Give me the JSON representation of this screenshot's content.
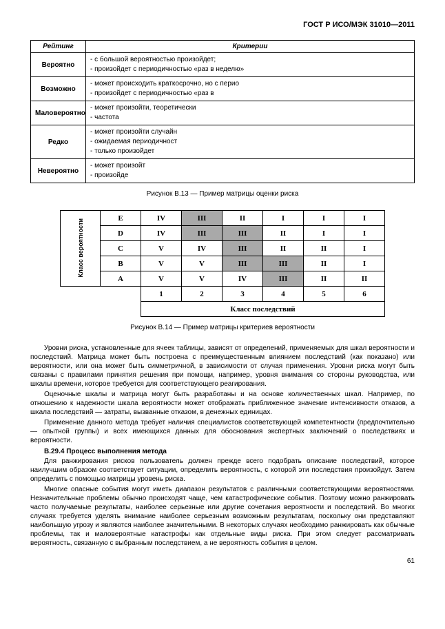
{
  "header": {
    "doc_id": "ГОСТ Р ИСО/МЭК 31010—2011"
  },
  "table1": {
    "columns": [
      "Рейтинг",
      "Критерии"
    ],
    "rows": [
      {
        "rating": "Вероятно",
        "criteria": "- с большой вероятностью произойдет;\n- произойдет с периодичностью «раз в неделю»"
      },
      {
        "rating": "Возможно",
        "criteria": "- может происходить краткосрочно, но с перио\n- произойдет с периодичностью «раз в"
      },
      {
        "rating": "Маловероятно",
        "criteria": "- может произойти, теоретически\n- частота"
      },
      {
        "rating": "Редко",
        "criteria": "- может произойти случайн\n- ожидаемая периодичност\n- только произойдет"
      },
      {
        "rating": "Невероятно",
        "criteria": "- может произойт\n- произойде"
      }
    ]
  },
  "captions": {
    "fig13": "Рисунок В.13 — Пример матрицы оценки риска",
    "fig14": "Рисунок В.14 — Пример матрицы критериев вероятности"
  },
  "matrix": {
    "vlabel": "Класс вероятности",
    "row_headers": [
      "E",
      "D",
      "C",
      "B",
      "A"
    ],
    "col_headers": [
      "1",
      "2",
      "3",
      "4",
      "5",
      "6"
    ],
    "footer_label": "Класс последствий",
    "cells": [
      [
        {
          "v": "IV"
        },
        {
          "v": "III",
          "s": 1
        },
        {
          "v": "II"
        },
        {
          "v": "I"
        },
        {
          "v": "I"
        },
        {
          "v": "I"
        }
      ],
      [
        {
          "v": "IV"
        },
        {
          "v": "III",
          "s": 1
        },
        {
          "v": "III",
          "s": 1
        },
        {
          "v": "II"
        },
        {
          "v": "I"
        },
        {
          "v": "I"
        }
      ],
      [
        {
          "v": "V"
        },
        {
          "v": "IV"
        },
        {
          "v": "III",
          "s": 1
        },
        {
          "v": "II"
        },
        {
          "v": "II"
        },
        {
          "v": "I"
        }
      ],
      [
        {
          "v": "V"
        },
        {
          "v": "V"
        },
        {
          "v": "III",
          "s": 1
        },
        {
          "v": "III",
          "s": 1
        },
        {
          "v": "II"
        },
        {
          "v": "I"
        }
      ],
      [
        {
          "v": "V"
        },
        {
          "v": "V"
        },
        {
          "v": "IV"
        },
        {
          "v": "III",
          "s": 1
        },
        {
          "v": "II"
        },
        {
          "v": "II"
        }
      ]
    ],
    "shade_color": "#a9a9a9"
  },
  "paragraphs": {
    "p1": "Уровни риска, установленные для ячеек таблицы, зависят от определений, применяемых для шкал вероятности и последствий. Матрица может быть построена с преимущественным влиянием последствий (как показано) или вероятности, или она может быть симметричной, в зависимости от случая применения. Уровни риска могут быть связаны с правилами принятия решения при помощи, например, уровня внимания со стороны руководства, или шкалы времени, которое требуется для соответствующего реагирования.",
    "p2": "Оценочные шкалы и матрица могут быть разработаны и на основе количественных шкал. Например, по отношению к надежности шкала вероятности может отображать приближенное значение интенсивности отказов, а шкала последствий — затраты, вызванные отказом, в денежных единицах.",
    "p3": "Применение данного метода требует наличия специалистов соответствующей компетентности (предпочтительно — опытной группы) и всех имеющихся данных для обоснования экспертных заключений о последствиях и вероятности.",
    "sec": "В.29.4 Процесс выполнения метода",
    "p4": "Для ранжирования рисков пользователь должен прежде всего подобрать описание последствий, которое наилучшим образом соответствует ситуации, определить вероятность, с которой эти последствия произойдут. Затем определить с помощью матрицы уровень риска.",
    "p5": "Многие опасные события могут иметь диапазон результатов с различными соответствующими вероятностями. Незначительные проблемы обычно происходят чаще, чем катастрофические события. Поэтому можно ранжировать часто получаемые результаты, наиболее серьезные или другие сочетания вероятности и последствий. Во многих случаях требуется уделять внимание наиболее серьезным возможным результатам, поскольку они представляют наибольшую угрозу и являются наиболее значительными. В некоторых случаях необходимо ранжировать как обычные проблемы, так и маловероятные катастрофы как отдельные виды риска. При этом следует рассматривать вероятность, связанную с выбранным последствием, а не вероятность события в целом."
  },
  "page_number": "61"
}
